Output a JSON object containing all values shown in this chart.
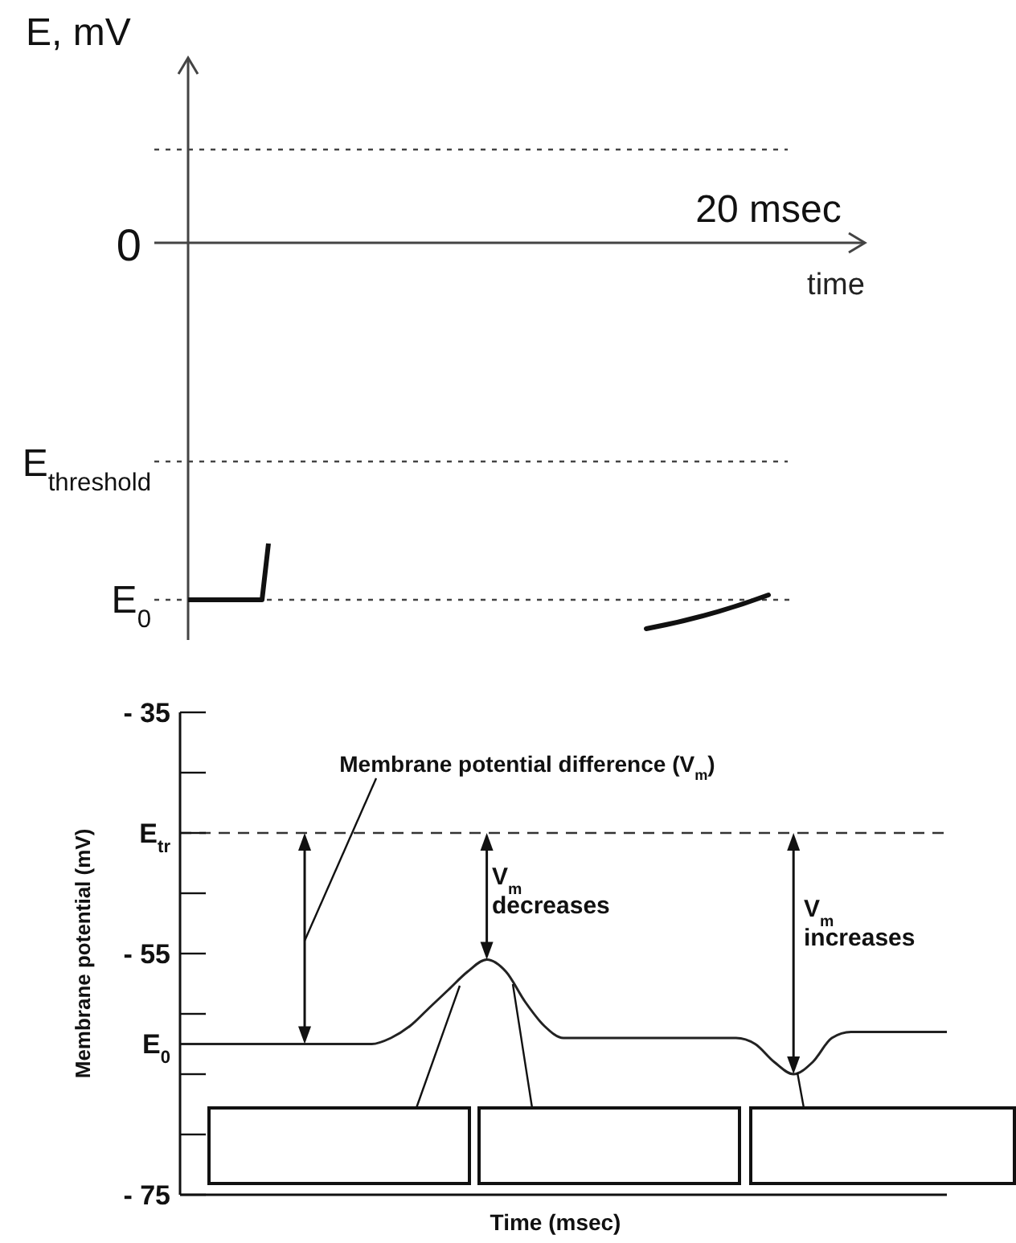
{
  "chart_data": [
    {
      "type": "other",
      "ylabel": "E, mV",
      "xlabel": "time",
      "annotations": [
        "0",
        "20 msec",
        "E$_{threshold}$",
        "E$_{0}$"
      ]
    },
    {
      "type": "line",
      "xlabel": "Time (msec)",
      "ylabel": "Membrane potential (mV)",
      "categories": [
        null,
        null,
        null,
        null,
        null,
        null,
        null,
        null,
        null,
        null,
        null,
        null,
        null,
        null,
        null,
        null,
        null,
        null,
        null,
        null,
        null,
        null,
        null,
        null,
        null,
        null,
        null,
        null,
        null,
        null,
        null,
        null,
        null,
        null,
        null,
        null,
        null,
        null,
        null,
        null,
        null
      ],
      "series": [
        {
          "color": "#222222",
          "values": [
            -62.5,
            -62.5,
            -62.5,
            -62.5,
            -62.5,
            -62.5,
            -62.5,
            -62.5,
            -62.5,
            -62.5,
            -62.5,
            -62,
            -61,
            -59.5,
            -58,
            -56.5,
            -55.5,
            -56.5,
            -59,
            -61,
            -62,
            -62,
            -62,
            -62,
            -62,
            -62,
            -62,
            -62,
            -62,
            -62,
            -62.5,
            -64,
            -65,
            -64,
            -62,
            -61.5,
            -61.5,
            -61.5,
            -61.5,
            -61.5,
            -61.5
          ]
        }
      ],
      "ylim": [
        -75,
        -35
      ],
      "yticks": [
        {
          "value": -35,
          "label": "- 35"
        },
        {
          "value": -40,
          "label": null
        },
        {
          "value": -45,
          "label": null
        },
        {
          "value": -50,
          "label": null
        },
        {
          "value": -55,
          "label": "- 55"
        },
        {
          "value": -60,
          "label": null
        },
        {
          "value": -65,
          "label": null
        },
        {
          "value": -70,
          "label": null
        },
        {
          "value": -75,
          "label": "- 75"
        }
      ],
      "ref_lines": [
        {
          "axis": "y",
          "value": -45,
          "label": "E$_{tr}$",
          "line_style": "dashed"
        }
      ],
      "annotations": [
        "E$_{0}$",
        "Membrane potential difference (V$_{m}$)",
        "V$_{m}$ decreases",
        "V$_{m}$ increases"
      ]
    }
  ]
}
